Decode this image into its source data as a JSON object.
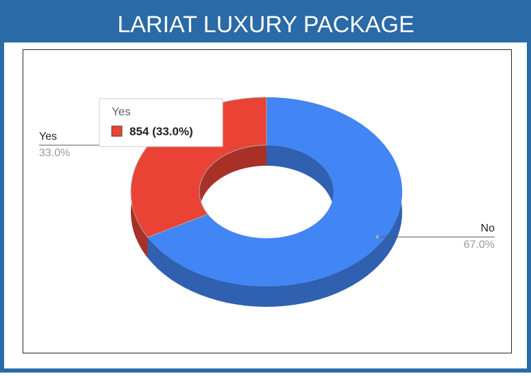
{
  "chart_data": {
    "type": "pie",
    "title": "LARIAT LUXURY PACKAGE",
    "categories": [
      "Yes",
      "No"
    ],
    "values": [
      33.0,
      67.0
    ],
    "value_labels": [
      "33.0%",
      "67.0%"
    ],
    "colors": [
      "#ea4335",
      "#4285f4"
    ],
    "tooltip": {
      "title": "Yes",
      "text": "854 (33.0%)"
    }
  }
}
